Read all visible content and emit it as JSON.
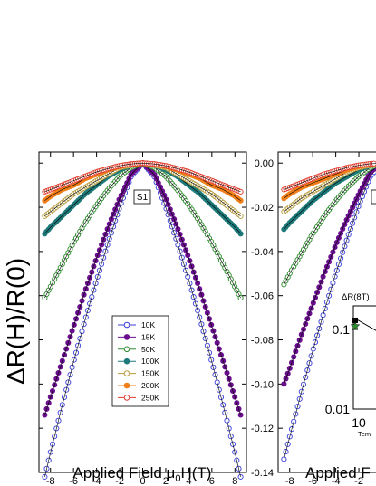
{
  "figure": {
    "ylabel": "ΔR(H)/R(0)"
  },
  "chart_data": [
    {
      "type": "scatter",
      "panel": "left",
      "annotation": "S1",
      "xlabel_main": "Applied Field μ",
      "xlabel_sub": "0",
      "xlabel_tail": "H(T)",
      "xlim": [
        -9,
        9
      ],
      "ylim": [
        -0.14,
        0.005
      ],
      "xticks": [
        -8,
        -6,
        -4,
        -2,
        0,
        2,
        4,
        6,
        8
      ],
      "yticks": [
        0.0,
        -0.02,
        -0.04,
        -0.06,
        -0.08,
        -0.1,
        -0.12,
        -0.14
      ],
      "legend_position": "lower-center",
      "series": [
        {
          "name": "10K",
          "color": "#3a3fd8",
          "marker": "circle-open",
          "x": [
            -8.5,
            -8,
            -7,
            -6,
            -5,
            -4,
            -3,
            -2,
            -1,
            0,
            1,
            2,
            3,
            4,
            5,
            6,
            7,
            8,
            8.5
          ],
          "y": [
            -0.142,
            -0.131,
            -0.11,
            -0.09,
            -0.071,
            -0.053,
            -0.036,
            -0.02,
            -0.006,
            0,
            -0.006,
            -0.02,
            -0.036,
            -0.053,
            -0.071,
            -0.09,
            -0.11,
            -0.131,
            -0.142
          ]
        },
        {
          "name": "15K",
          "color": "#6a0f8e",
          "marker": "circle-filled",
          "x": [
            -8.5,
            -8,
            -7,
            -6,
            -5,
            -4,
            -3,
            -2,
            -1,
            0,
            1,
            2,
            3,
            4,
            5,
            6,
            7,
            8,
            8.5
          ],
          "y": [
            -0.114,
            -0.106,
            -0.09,
            -0.074,
            -0.058,
            -0.043,
            -0.029,
            -0.016,
            -0.005,
            0,
            -0.005,
            -0.016,
            -0.029,
            -0.043,
            -0.058,
            -0.074,
            -0.09,
            -0.106,
            -0.114
          ]
        },
        {
          "name": "50K",
          "color": "#2e8b2e",
          "marker": "circle-open",
          "x": [
            -8.5,
            -8,
            -7,
            -6,
            -5,
            -4,
            -3,
            -2,
            -1,
            0,
            1,
            2,
            3,
            4,
            5,
            6,
            7,
            8,
            8.5
          ],
          "y": [
            -0.061,
            -0.056,
            -0.046,
            -0.036,
            -0.027,
            -0.019,
            -0.012,
            -0.006,
            -0.002,
            0,
            -0.002,
            -0.006,
            -0.012,
            -0.019,
            -0.027,
            -0.036,
            -0.046,
            -0.056,
            -0.061
          ]
        },
        {
          "name": "100K",
          "color": "#1f7a7a",
          "marker": "circle-filled",
          "x": [
            -8.5,
            -8,
            -7,
            -6,
            -5,
            -4,
            -3,
            -2,
            -1,
            0,
            1,
            2,
            3,
            4,
            5,
            6,
            7,
            8,
            8.5
          ],
          "y": [
            -0.032,
            -0.029,
            -0.024,
            -0.019,
            -0.014,
            -0.01,
            -0.006,
            -0.003,
            -0.001,
            0,
            -0.001,
            -0.003,
            -0.006,
            -0.01,
            -0.014,
            -0.019,
            -0.024,
            -0.029,
            -0.032
          ]
        },
        {
          "name": "150K",
          "color": "#b79a3a",
          "marker": "circle-open",
          "x": [
            -8.5,
            -8,
            -7,
            -6,
            -5,
            -4,
            -3,
            -2,
            -1,
            0,
            1,
            2,
            3,
            4,
            5,
            6,
            7,
            8,
            8.5
          ],
          "y": [
            -0.024,
            -0.022,
            -0.018,
            -0.014,
            -0.011,
            -0.008,
            -0.005,
            -0.002,
            -0.001,
            0,
            -0.001,
            -0.002,
            -0.005,
            -0.008,
            -0.011,
            -0.014,
            -0.018,
            -0.022,
            -0.024
          ]
        },
        {
          "name": "200K",
          "color": "#f07f1a",
          "marker": "circle-filled",
          "x": [
            -8.5,
            -8,
            -7,
            -6,
            -5,
            -4,
            -3,
            -2,
            -1,
            0,
            1,
            2,
            3,
            4,
            5,
            6,
            7,
            8,
            8.5
          ],
          "y": [
            -0.017,
            -0.015,
            -0.012,
            -0.01,
            -0.007,
            -0.005,
            -0.003,
            -0.0015,
            -0.0005,
            0,
            -0.0005,
            -0.0015,
            -0.003,
            -0.005,
            -0.007,
            -0.01,
            -0.012,
            -0.015,
            -0.017
          ]
        },
        {
          "name": "250K",
          "color": "#e03a2a",
          "marker": "circle-open",
          "x": [
            -8.5,
            -8,
            -7,
            -6,
            -5,
            -4,
            -3,
            -2,
            -1,
            0,
            1,
            2,
            3,
            4,
            5,
            6,
            7,
            8,
            8.5
          ],
          "y": [
            -0.013,
            -0.012,
            -0.01,
            -0.008,
            -0.006,
            -0.004,
            -0.0025,
            -0.0012,
            -0.0004,
            0,
            -0.0004,
            -0.0012,
            -0.0025,
            -0.004,
            -0.006,
            -0.008,
            -0.01,
            -0.012,
            -0.013
          ]
        }
      ]
    },
    {
      "type": "scatter",
      "panel": "right",
      "annotation": "S2",
      "xlabel_main": "Applied F",
      "xlim": [
        -9,
        9
      ],
      "ylim": [
        -0.14,
        0.005
      ],
      "xticks": [
        -8,
        -6,
        -4,
        -2
      ],
      "yticks": [
        0.0,
        -0.02,
        -0.04,
        -0.06,
        -0.08,
        -0.1,
        -0.12,
        -0.14
      ],
      "series": [
        {
          "name": "10K",
          "color": "#3a3fd8",
          "marker": "circle-open",
          "x": [
            -8.5,
            -8,
            -7,
            -6,
            -5,
            -4,
            -3,
            -2,
            -1,
            0
          ],
          "y": [
            -0.134,
            -0.124,
            -0.104,
            -0.085,
            -0.067,
            -0.05,
            -0.034,
            -0.019,
            -0.006,
            0
          ]
        },
        {
          "name": "15K",
          "color": "#6a0f8e",
          "marker": "circle-filled",
          "x": [
            -8.5,
            -8,
            -7,
            -6,
            -5,
            -4,
            -3,
            -2,
            -1,
            0
          ],
          "y": [
            -0.1,
            -0.093,
            -0.078,
            -0.064,
            -0.05,
            -0.037,
            -0.025,
            -0.014,
            -0.004,
            0
          ]
        },
        {
          "name": "50K",
          "color": "#2e8b2e",
          "marker": "circle-open",
          "x": [
            -8.5,
            -8,
            -7,
            -6,
            -5,
            -4,
            -3,
            -2,
            -1,
            0
          ],
          "y": [
            -0.055,
            -0.05,
            -0.041,
            -0.032,
            -0.024,
            -0.017,
            -0.011,
            -0.006,
            -0.002,
            0
          ]
        },
        {
          "name": "100K",
          "color": "#1f7a7a",
          "marker": "circle-filled",
          "x": [
            -8.5,
            -8,
            -7,
            -6,
            -5,
            -4,
            -3,
            -2,
            -1,
            0
          ],
          "y": [
            -0.03,
            -0.027,
            -0.022,
            -0.017,
            -0.013,
            -0.009,
            -0.006,
            -0.003,
            -0.001,
            0
          ]
        },
        {
          "name": "150K",
          "color": "#b79a3a",
          "marker": "circle-open",
          "x": [
            -8.5,
            -8,
            -7,
            -6,
            -5,
            -4,
            -3,
            -2,
            -1,
            0
          ],
          "y": [
            -0.022,
            -0.02,
            -0.016,
            -0.013,
            -0.01,
            -0.007,
            -0.004,
            -0.002,
            -0.001,
            0
          ]
        },
        {
          "name": "200K",
          "color": "#f07f1a",
          "marker": "circle-filled",
          "x": [
            -8.5,
            -8,
            -7,
            -6,
            -5,
            -4,
            -3,
            -2,
            -1,
            0
          ],
          "y": [
            -0.016,
            -0.014,
            -0.011,
            -0.009,
            -0.007,
            -0.005,
            -0.003,
            -0.0015,
            -0.0005,
            0
          ]
        },
        {
          "name": "250K",
          "color": "#e03a2a",
          "marker": "circle-open",
          "x": [
            -8.5,
            -8,
            -7,
            -6,
            -5,
            -4,
            -3,
            -2,
            -1,
            0
          ],
          "y": [
            -0.012,
            -0.011,
            -0.009,
            -0.007,
            -0.005,
            -0.0035,
            -0.002,
            -0.001,
            -0.0003,
            0
          ]
        }
      ]
    },
    {
      "type": "scatter",
      "panel": "right-inset",
      "ylabel": "ΔR(8T)",
      "xlabel_partial": "Tem",
      "yscale": "log",
      "ytick_labels": [
        "0.1",
        "0.01"
      ],
      "xtick_labels": [
        "10"
      ],
      "series": [
        {
          "name": "",
          "color": "#000000",
          "marker": "square-filled",
          "x": [
            10,
            15
          ],
          "y": [
            0.13,
            0.1
          ]
        },
        {
          "name": "",
          "color": "#2e8b2e",
          "marker": "star",
          "x": [
            10,
            15
          ],
          "y": [
            0.11,
            0.095
          ]
        }
      ]
    }
  ]
}
